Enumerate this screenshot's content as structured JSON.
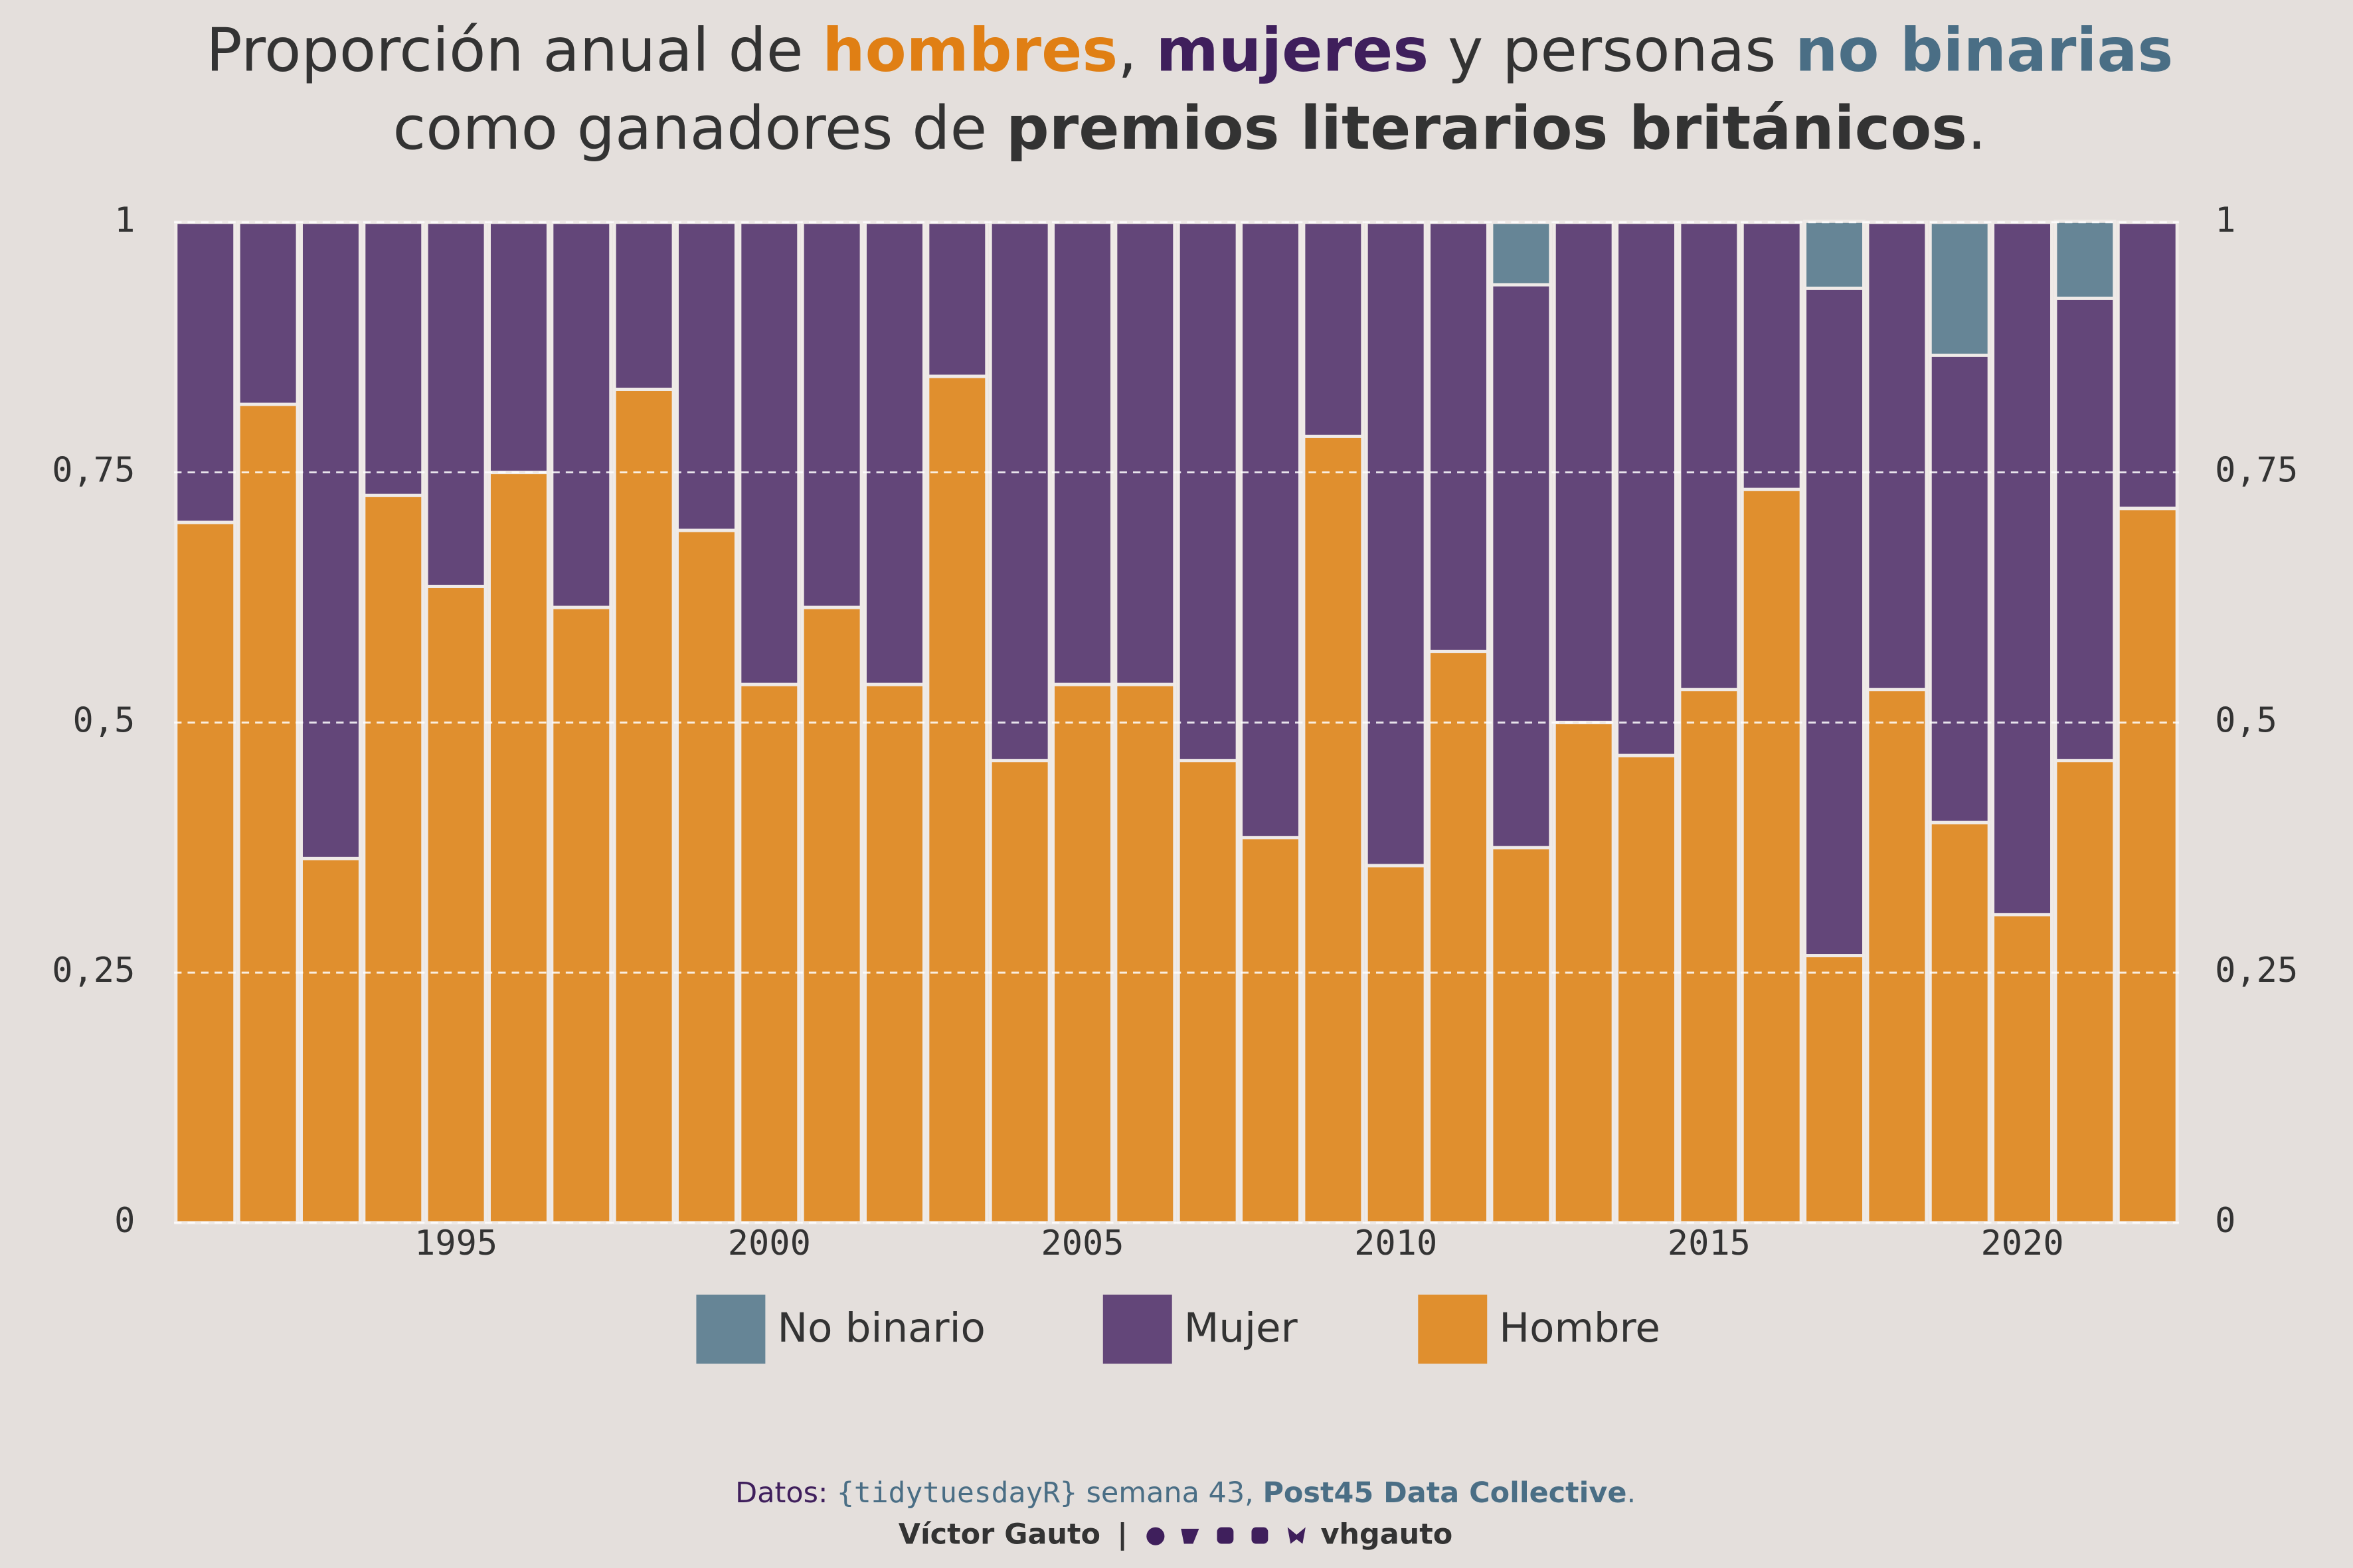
{
  "chart_data": {
    "type": "stacked_bar",
    "title_line1": [
      "Proporción anual de ",
      "hombres",
      ", ",
      "mujeres",
      " y personas ",
      "no binarias"
    ],
    "title_line2": [
      "como ganadores de ",
      "premios literarios británicos",
      "."
    ],
    "caption_line1": [
      "Datos: ",
      "{tidytuesdayR}",
      " semana 43, ",
      "Post45 Data Collective",
      "."
    ],
    "caption_line2": [
      "Víctor Gauto",
      "|",
      "vhgauto"
    ],
    "x": [
      1991,
      1992,
      1993,
      1994,
      1995,
      1996,
      1997,
      1998,
      1999,
      2000,
      2001,
      2002,
      2003,
      2004,
      2005,
      2006,
      2007,
      2008,
      2009,
      2010,
      2011,
      2012,
      2013,
      2014,
      2015,
      2016,
      2017,
      2018,
      2019,
      2020,
      2021,
      2022
    ],
    "xlim": [
      1990.5,
      2022.5
    ],
    "xticks": [
      1995,
      2000,
      2005,
      2010,
      2015,
      2020
    ],
    "ylim": [
      0,
      1
    ],
    "yticks": [
      0,
      {
        "value": 0.25,
        "label": "0,25"
      },
      {
        "value": 0.5,
        "label": "0,5"
      },
      {
        "value": 0.75,
        "label": "0,75"
      },
      1
    ],
    "grid": true,
    "legend": "bottom",
    "series": [
      {
        "name": "Hombre",
        "color": "#e08f2e",
        "values": [
          0.7,
          0.818,
          0.364,
          0.727,
          0.636,
          0.75,
          0.615,
          0.833,
          0.692,
          0.538,
          0.615,
          0.538,
          0.846,
          0.462,
          0.538,
          0.538,
          0.462,
          0.385,
          0.786,
          0.357,
          0.571,
          0.375,
          0.5,
          0.467,
          0.533,
          0.733,
          0.267,
          0.533,
          0.4,
          0.308,
          0.462,
          0.714
        ]
      },
      {
        "name": "Mujer",
        "color": "#634679",
        "values": [
          0.3,
          0.182,
          0.636,
          0.273,
          0.364,
          0.25,
          0.385,
          0.167,
          0.308,
          0.462,
          0.385,
          0.462,
          0.154,
          0.538,
          0.462,
          0.462,
          0.538,
          0.615,
          0.214,
          0.643,
          0.429,
          0.5625,
          0.5,
          0.533,
          0.467,
          0.267,
          0.667,
          0.467,
          0.467,
          0.692,
          0.462,
          0.286
        ]
      },
      {
        "name": "No binario",
        "color": "#668596",
        "values": [
          0,
          0,
          0,
          0,
          0,
          0,
          0,
          0,
          0,
          0,
          0,
          0,
          0,
          0,
          0,
          0,
          0,
          0,
          0,
          0,
          0,
          0.0625,
          0,
          0,
          0,
          0,
          0.067,
          0,
          0.133,
          0,
          0.077,
          0
        ]
      }
    ]
  }
}
